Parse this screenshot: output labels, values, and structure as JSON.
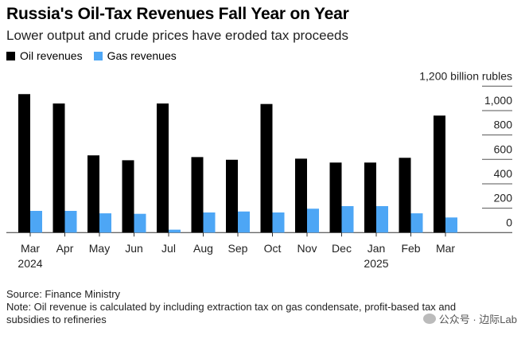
{
  "title": "Russia's Oil-Tax Revenues Fall Year on Year",
  "subtitle": "Lower output and crude prices have eroded tax proceeds",
  "colors": {
    "oil": "#000000",
    "gas": "#4da6f5"
  },
  "chart_data": {
    "type": "bar",
    "title": "Russia's Oil-Tax Revenues Fall Year on Year",
    "ylabel": "billion rubles",
    "ylim": [
      0,
      1200
    ],
    "yticks": [
      0,
      200,
      400,
      600,
      800,
      1000,
      1200
    ],
    "ytick_labels": [
      "0",
      "200",
      "400",
      "600",
      "800",
      "1,000",
      "1,200 billion rubles"
    ],
    "categories": [
      "Mar",
      "Apr",
      "May",
      "Jun",
      "Jul",
      "Aug",
      "Sep",
      "Oct",
      "Nov",
      "Dec",
      "Jan",
      "Feb",
      "Mar"
    ],
    "year_labels": [
      "2024",
      "",
      "",
      "",
      "",
      "",
      "",
      "",
      "",
      "",
      "2025",
      "",
      ""
    ],
    "legend_position": "top-left",
    "series": [
      {
        "name": "Oil revenues",
        "values": [
          1135,
          1058,
          633,
          593,
          1058,
          619,
          597,
          1054,
          606,
          574,
          574,
          613,
          959
        ]
      },
      {
        "name": "Gas revenues",
        "values": [
          178,
          178,
          158,
          154,
          24,
          165,
          173,
          165,
          196,
          217,
          217,
          158,
          124
        ]
      }
    ]
  },
  "footer": {
    "source": "Source: Finance Ministry",
    "note": "Note: Oil revenue is calculated by including extraction tax on gas condensate, profit-based tax and subsidies to refineries"
  },
  "watermark": "公众号 · 边际Lab"
}
